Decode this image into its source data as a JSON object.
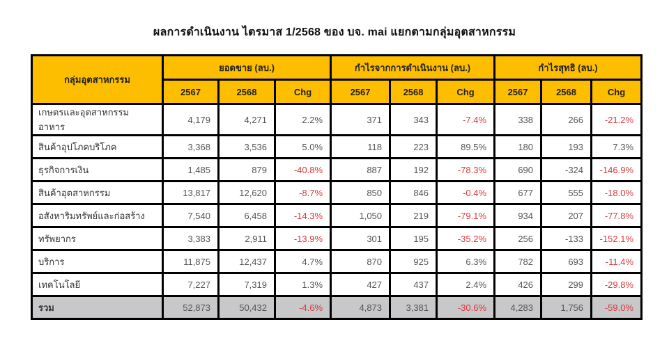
{
  "title": "ผลการดำเนินงาน ไตรมาส 1/2568 ของ บจ. mai แยกตามกลุ่มอุตสาหกรรม",
  "table": {
    "row_header": "กลุ่มอุตสาหกรรม",
    "groups": [
      "ยอดขาย (ลบ.)",
      "กำไรจากการดำเนินงาน (ลบ.)",
      "กำไรสุทธิ (ลบ.)"
    ],
    "subheaders": [
      "2567",
      "2568",
      "Chg",
      "2567",
      "2568",
      "Chg",
      "2567",
      "2568",
      "Chg"
    ],
    "rows": [
      {
        "label": "เกษตรและอุตสาหกรรมอาหาร",
        "cells": [
          "4,179",
          "4,271",
          "2.2%",
          "371",
          "343",
          "-7.4%",
          "338",
          "266",
          "-21.2%"
        ]
      },
      {
        "label": "สินค้าอุปโภคบริโภค",
        "cells": [
          "3,368",
          "3,536",
          "5.0%",
          "118",
          "223",
          "89.5%",
          "180",
          "193",
          "7.3%"
        ]
      },
      {
        "label": "ธุรกิจการเงิน",
        "cells": [
          "1,485",
          "879",
          "-40.8%",
          "887",
          "192",
          "-78.3%",
          "690",
          "-324",
          "-146.9%"
        ]
      },
      {
        "label": "สินค้าอุตสาหกรรม",
        "cells": [
          "13,817",
          "12,620",
          "-8.7%",
          "850",
          "846",
          "-0.4%",
          "677",
          "555",
          "-18.0%"
        ]
      },
      {
        "label": "อสังหาริมทรัพย์และก่อสร้าง",
        "cells": [
          "7,540",
          "6,458",
          "-14.3%",
          "1,050",
          "219",
          "-79.1%",
          "934",
          "207",
          "-77.8%"
        ]
      },
      {
        "label": "ทรัพยากร",
        "cells": [
          "3,383",
          "2,911",
          "-13.9%",
          "301",
          "195",
          "-35.2%",
          "256",
          "-133",
          "-152.1%"
        ]
      },
      {
        "label": "บริการ",
        "cells": [
          "11,875",
          "12,437",
          "4.7%",
          "870",
          "925",
          "6.3%",
          "782",
          "693",
          "-11.4%"
        ]
      },
      {
        "label": "เทคโนโลยี",
        "cells": [
          "7,227",
          "7,319",
          "1.3%",
          "427",
          "437",
          "2.4%",
          "426",
          "299",
          "-29.8%"
        ]
      }
    ],
    "total": {
      "label": "รวม",
      "cells": [
        "52,873",
        "50,432",
        "-4.6%",
        "4,873",
        "3,381",
        "-30.6%",
        "4,283",
        "1,756",
        "-59.0%"
      ]
    }
  },
  "colors": {
    "header_bg": "#fdbe00",
    "total_bg": "#c8c7c9",
    "negative": "#d9393f",
    "border": "#000000"
  }
}
